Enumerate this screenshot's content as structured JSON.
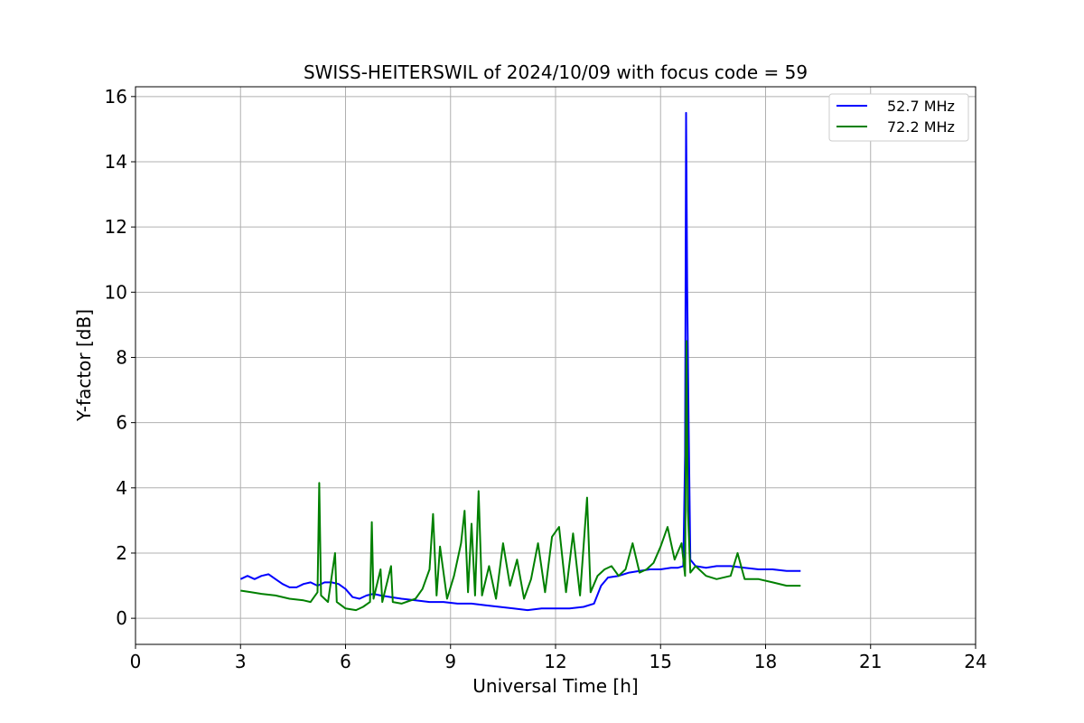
{
  "chart_data": {
    "type": "line",
    "title": "SWISS-HEITERSWIL of 2024/10/09 with focus code = 59",
    "xlabel": "Universal Time [h]",
    "ylabel": "Y-factor [dB]",
    "xlim": [
      0,
      24
    ],
    "ylim": [
      -0.8,
      16.3
    ],
    "xticks": [
      0,
      3,
      6,
      9,
      12,
      15,
      18,
      21,
      24
    ],
    "xtick_labels": [
      "0",
      "3",
      "6",
      "9",
      "12",
      "15",
      "18",
      "21",
      "24"
    ],
    "yticks": [
      0,
      2,
      4,
      6,
      8,
      10,
      12,
      14,
      16
    ],
    "ytick_labels": [
      "0",
      "2",
      "4",
      "6",
      "8",
      "10",
      "12",
      "14",
      "16"
    ],
    "grid": true,
    "legend_position": "top-right",
    "series": [
      {
        "name": "52.7 MHz",
        "color": "#0000ff",
        "points": [
          [
            3.0,
            1.2
          ],
          [
            3.2,
            1.3
          ],
          [
            3.4,
            1.2
          ],
          [
            3.6,
            1.3
          ],
          [
            3.8,
            1.35
          ],
          [
            4.0,
            1.2
          ],
          [
            4.2,
            1.05
          ],
          [
            4.4,
            0.95
          ],
          [
            4.6,
            0.95
          ],
          [
            4.8,
            1.05
          ],
          [
            5.0,
            1.1
          ],
          [
            5.2,
            1.0
          ],
          [
            5.4,
            1.1
          ],
          [
            5.6,
            1.1
          ],
          [
            5.8,
            1.05
          ],
          [
            6.0,
            0.9
          ],
          [
            6.2,
            0.65
          ],
          [
            6.4,
            0.6
          ],
          [
            6.6,
            0.7
          ],
          [
            6.8,
            0.75
          ],
          [
            7.0,
            0.7
          ],
          [
            7.3,
            0.65
          ],
          [
            7.6,
            0.6
          ],
          [
            8.0,
            0.55
          ],
          [
            8.4,
            0.5
          ],
          [
            8.8,
            0.5
          ],
          [
            9.2,
            0.45
          ],
          [
            9.6,
            0.45
          ],
          [
            10.0,
            0.4
          ],
          [
            10.4,
            0.35
          ],
          [
            10.8,
            0.3
          ],
          [
            11.2,
            0.25
          ],
          [
            11.6,
            0.3
          ],
          [
            12.0,
            0.3
          ],
          [
            12.4,
            0.3
          ],
          [
            12.8,
            0.35
          ],
          [
            13.1,
            0.45
          ],
          [
            13.3,
            1.0
          ],
          [
            13.5,
            1.25
          ],
          [
            13.8,
            1.3
          ],
          [
            14.1,
            1.4
          ],
          [
            14.4,
            1.45
          ],
          [
            14.7,
            1.5
          ],
          [
            15.0,
            1.5
          ],
          [
            15.3,
            1.55
          ],
          [
            15.5,
            1.55
          ],
          [
            15.65,
            1.6
          ],
          [
            15.7,
            5.0
          ],
          [
            15.73,
            15.5
          ],
          [
            15.76,
            10.2
          ],
          [
            15.8,
            6.0
          ],
          [
            15.85,
            1.8
          ],
          [
            16.0,
            1.6
          ],
          [
            16.3,
            1.55
          ],
          [
            16.6,
            1.6
          ],
          [
            17.0,
            1.6
          ],
          [
            17.4,
            1.55
          ],
          [
            17.8,
            1.5
          ],
          [
            18.2,
            1.5
          ],
          [
            18.6,
            1.45
          ],
          [
            19.0,
            1.45
          ]
        ]
      },
      {
        "name": "72.2 MHz",
        "color": "#008000",
        "points": [
          [
            3.0,
            0.85
          ],
          [
            3.3,
            0.8
          ],
          [
            3.6,
            0.75
          ],
          [
            4.0,
            0.7
          ],
          [
            4.4,
            0.6
          ],
          [
            4.8,
            0.55
          ],
          [
            5.0,
            0.5
          ],
          [
            5.2,
            0.8
          ],
          [
            5.25,
            4.15
          ],
          [
            5.3,
            0.7
          ],
          [
            5.5,
            0.5
          ],
          [
            5.7,
            2.0
          ],
          [
            5.75,
            0.5
          ],
          [
            6.0,
            0.3
          ],
          [
            6.3,
            0.25
          ],
          [
            6.5,
            0.35
          ],
          [
            6.7,
            0.5
          ],
          [
            6.75,
            2.95
          ],
          [
            6.8,
            0.6
          ],
          [
            7.0,
            1.5
          ],
          [
            7.05,
            0.5
          ],
          [
            7.3,
            1.6
          ],
          [
            7.35,
            0.5
          ],
          [
            7.6,
            0.45
          ],
          [
            8.0,
            0.6
          ],
          [
            8.2,
            0.9
          ],
          [
            8.4,
            1.5
          ],
          [
            8.5,
            3.2
          ],
          [
            8.6,
            0.7
          ],
          [
            8.7,
            2.2
          ],
          [
            8.9,
            0.6
          ],
          [
            9.1,
            1.3
          ],
          [
            9.3,
            2.3
          ],
          [
            9.4,
            3.3
          ],
          [
            9.5,
            0.8
          ],
          [
            9.6,
            2.9
          ],
          [
            9.7,
            0.7
          ],
          [
            9.8,
            3.9
          ],
          [
            9.9,
            0.7
          ],
          [
            10.1,
            1.6
          ],
          [
            10.3,
            0.6
          ],
          [
            10.5,
            2.3
          ],
          [
            10.7,
            1.0
          ],
          [
            10.9,
            1.8
          ],
          [
            11.1,
            0.6
          ],
          [
            11.3,
            1.2
          ],
          [
            11.5,
            2.3
          ],
          [
            11.7,
            0.8
          ],
          [
            11.9,
            2.5
          ],
          [
            12.1,
            2.8
          ],
          [
            12.3,
            0.8
          ],
          [
            12.5,
            2.6
          ],
          [
            12.7,
            0.7
          ],
          [
            12.9,
            3.7
          ],
          [
            13.0,
            0.8
          ],
          [
            13.2,
            1.3
          ],
          [
            13.4,
            1.5
          ],
          [
            13.6,
            1.6
          ],
          [
            13.8,
            1.3
          ],
          [
            14.0,
            1.5
          ],
          [
            14.2,
            2.3
          ],
          [
            14.4,
            1.4
          ],
          [
            14.6,
            1.5
          ],
          [
            14.8,
            1.7
          ],
          [
            15.0,
            2.2
          ],
          [
            15.2,
            2.8
          ],
          [
            15.4,
            1.8
          ],
          [
            15.6,
            2.3
          ],
          [
            15.7,
            1.3
          ],
          [
            15.74,
            8.5
          ],
          [
            15.78,
            3.3
          ],
          [
            15.85,
            1.4
          ],
          [
            16.0,
            1.6
          ],
          [
            16.3,
            1.3
          ],
          [
            16.6,
            1.2
          ],
          [
            17.0,
            1.3
          ],
          [
            17.2,
            2.0
          ],
          [
            17.4,
            1.2
          ],
          [
            17.8,
            1.2
          ],
          [
            18.2,
            1.1
          ],
          [
            18.6,
            1.0
          ],
          [
            19.0,
            1.0
          ]
        ]
      }
    ]
  }
}
